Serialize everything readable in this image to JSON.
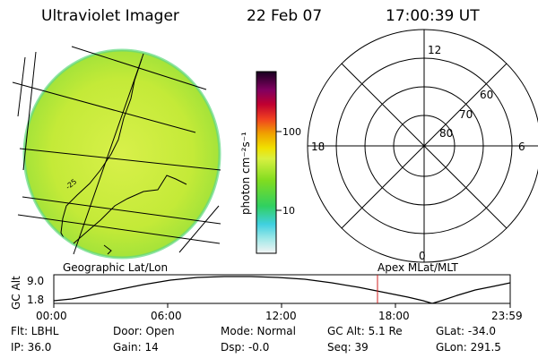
{
  "header": {
    "title": "Ultraviolet Imager",
    "date": "22 Feb 07",
    "time": "17:00:39 UT"
  },
  "colorbar": {
    "unit": "photon cm⁻²s⁻¹",
    "tick_100": "100",
    "tick_10": "10"
  },
  "polar_plot": {
    "mlt_top": "12",
    "mlt_left": "18",
    "mlt_right": "6",
    "mlt_bottom": "0",
    "lat_60": "60",
    "lat_70": "70",
    "lat_80": "80"
  },
  "labels": {
    "geographic": "Geographic Lat/Lon",
    "apex": "Apex MLat/MLT"
  },
  "altitude_plot": {
    "ylabel": "GC Alt",
    "ymax": "9.0",
    "ymin": "1.8",
    "x_ticks": [
      "00:00",
      "06:00",
      "12:00",
      "18:00",
      "23:59"
    ]
  },
  "info": {
    "flt": "Flt: LBHL",
    "ip": "IP: 36.0",
    "door": "Door: Open",
    "gain": "Gain: 14",
    "mode": "Mode: Normal",
    "dsp": "Dsp:   -0.0",
    "gcalt": "GC Alt: 5.1 Re",
    "seq": "Seq: 39",
    "glat": "GLat: -34.0",
    "glon": "GLon: 291.5"
  },
  "colors": {
    "image_fill": "#c8ec40",
    "marker": "#d02020"
  }
}
